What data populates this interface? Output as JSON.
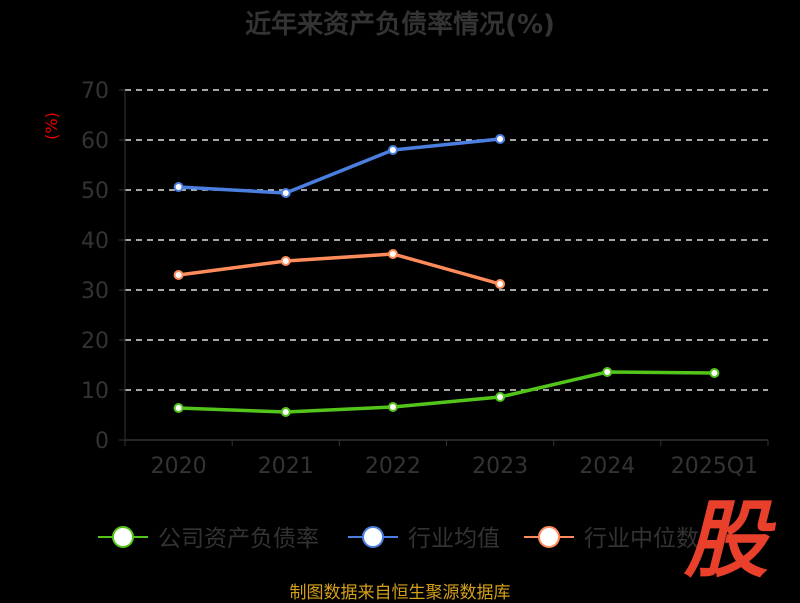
{
  "chart_data": {
    "type": "line",
    "title": "近年来资产负债率情况(%)",
    "ylabel": "(%)",
    "xlabel": "",
    "categories": [
      "2020",
      "2021",
      "2022",
      "2023",
      "2024",
      "2025Q1"
    ],
    "ylim": [
      0,
      70
    ],
    "yticks": [
      0,
      10,
      20,
      30,
      40,
      50,
      60,
      70
    ],
    "grid": true,
    "legend_position": "bottom",
    "series": [
      {
        "name": "公司资产负债率",
        "color": "#52c41a",
        "values": [
          6.4,
          5.6,
          6.6,
          8.6,
          13.6,
          13.4
        ]
      },
      {
        "name": "行业均值",
        "color": "#4a7fe0",
        "values": [
          50.6,
          49.4,
          58.0,
          60.2,
          null,
          null
        ]
      },
      {
        "name": "行业中位数",
        "color": "#ff8c5a",
        "values": [
          33.0,
          35.8,
          37.2,
          31.2,
          null,
          null
        ]
      }
    ]
  },
  "footer": "制图数据来自恒生聚源数据库",
  "watermark": "股"
}
